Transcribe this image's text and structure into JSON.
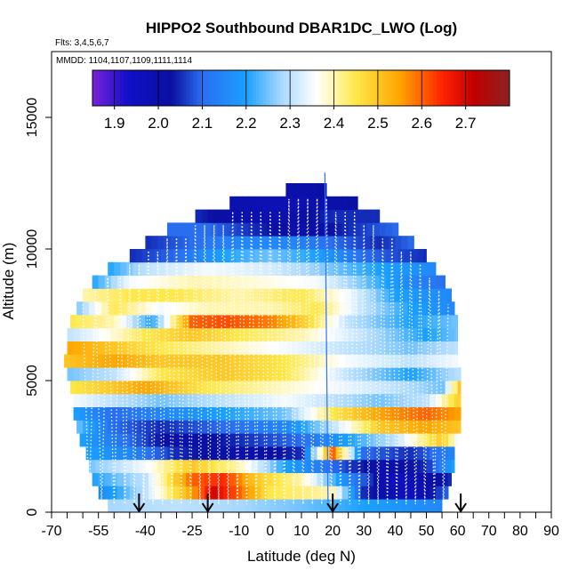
{
  "chart_data": {
    "type": "heatmap",
    "title": "HIPPO2 Southbound DBAR1DC_LWO (Log)",
    "flights_label": "Flts: 3,4,5,6,7",
    "dates_label": "MMDD: 1104,1107,1109,1111,1114",
    "xlabel": "Latitude (deg N)",
    "ylabel": "Altitude (m)",
    "xlim": [
      -70,
      90
    ],
    "ylim": [
      0,
      17500
    ],
    "x_ticks": [
      -70,
      -55,
      -40,
      -25,
      -10,
      0,
      10,
      20,
      30,
      40,
      50,
      60,
      70,
      80,
      90
    ],
    "x_minor_ticks": [
      -65,
      -60,
      -50,
      -45,
      -35,
      -30,
      -20,
      -15,
      -5,
      5,
      15,
      25,
      35,
      45,
      55,
      65,
      75,
      85
    ],
    "y_ticks": [
      0,
      5000,
      10000,
      15000
    ],
    "colorbar": {
      "min": 1.85,
      "max": 2.8,
      "tick_values": [
        1.9,
        2.0,
        2.1,
        2.2,
        2.3,
        2.4,
        2.5,
        2.6,
        2.7
      ],
      "tick_labels": [
        "1.9",
        "2.0",
        "2.1",
        "2.2",
        "2.3",
        "2.4",
        "2.5",
        "2.6",
        "2.7"
      ],
      "segment_edges": [
        1.9,
        2.0,
        2.1,
        2.2,
        2.3,
        2.4,
        2.5,
        2.6,
        2.7
      ],
      "stops": [
        {
          "v": 1.85,
          "color": "#7a22d8"
        },
        {
          "v": 1.93,
          "color": "#1010c8"
        },
        {
          "v": 2.03,
          "color": "#0a10a0"
        },
        {
          "v": 2.1,
          "color": "#2a6ef0"
        },
        {
          "v": 2.2,
          "color": "#1aa0ff"
        },
        {
          "v": 2.28,
          "color": "#a8d8ff"
        },
        {
          "v": 2.36,
          "color": "#ffffff"
        },
        {
          "v": 2.45,
          "color": "#ffe84a"
        },
        {
          "v": 2.55,
          "color": "#ffa500"
        },
        {
          "v": 2.65,
          "color": "#ff2000"
        },
        {
          "v": 2.72,
          "color": "#c00000"
        },
        {
          "v": 2.8,
          "color": "#8b2222"
        }
      ]
    },
    "altitude_bins_m": [
      0,
      500,
      1000,
      1500,
      2000,
      2500,
      3000,
      3500,
      4000,
      4500,
      5000,
      5500,
      6000,
      6500,
      7000,
      7500,
      8000,
      8500,
      9000,
      9500,
      10000,
      10500,
      11000,
      11500,
      12000
    ],
    "row_extent_lat": [
      [
        -52,
        55
      ],
      [
        -55,
        57
      ],
      [
        -57,
        58
      ],
      [
        -58,
        59
      ],
      [
        -59,
        59
      ],
      [
        -61,
        60
      ],
      [
        -62,
        61
      ],
      [
        -63,
        61
      ],
      [
        -63,
        61
      ],
      [
        -64,
        61
      ],
      [
        -65,
        61
      ],
      [
        -66,
        60
      ],
      [
        -65,
        60
      ],
      [
        -65,
        60
      ],
      [
        -64,
        60
      ],
      [
        -62,
        59
      ],
      [
        -60,
        58
      ],
      [
        -57,
        56
      ],
      [
        -52,
        53
      ],
      [
        -45,
        50
      ],
      [
        -40,
        46
      ],
      [
        -33,
        41
      ],
      [
        -24,
        35
      ],
      [
        -13,
        28
      ],
      [
        5,
        18
      ]
    ],
    "field_bands": [
      {
        "alt": [
          0,
          500
        ],
        "knots": [
          [
            -52,
            2.28
          ],
          [
            -30,
            2.3
          ],
          [
            -10,
            2.28
          ],
          [
            10,
            2.25
          ],
          [
            30,
            2.2
          ],
          [
            55,
            2.15
          ]
        ]
      },
      {
        "alt": [
          500,
          1000
        ],
        "knots": [
          [
            -55,
            2.15
          ],
          [
            -40,
            2.3
          ],
          [
            -25,
            2.55
          ],
          [
            -18,
            2.7
          ],
          [
            -10,
            2.6
          ],
          [
            0,
            2.45
          ],
          [
            20,
            2.4
          ],
          [
            30,
            2.05
          ],
          [
            45,
            1.95
          ],
          [
            57,
            2.1
          ]
        ]
      },
      {
        "alt": [
          1000,
          1500
        ],
        "knots": [
          [
            -57,
            2.2
          ],
          [
            -40,
            2.3
          ],
          [
            -25,
            2.6
          ],
          [
            -15,
            2.65
          ],
          [
            -5,
            2.5
          ],
          [
            10,
            2.4
          ],
          [
            25,
            2.15
          ],
          [
            40,
            1.95
          ],
          [
            58,
            2.05
          ]
        ]
      },
      {
        "alt": [
          1500,
          2000
        ],
        "knots": [
          [
            -58,
            2.25
          ],
          [
            -40,
            2.35
          ],
          [
            -25,
            2.5
          ],
          [
            -10,
            2.4
          ],
          [
            5,
            2.2
          ],
          [
            20,
            2.1
          ],
          [
            35,
            2.0
          ],
          [
            50,
            2.05
          ],
          [
            59,
            2.2
          ]
        ]
      },
      {
        "alt": [
          2000,
          2500
        ],
        "knots": [
          [
            -59,
            2.2
          ],
          [
            -45,
            2.15
          ],
          [
            -30,
            2.05
          ],
          [
            -10,
            2.0
          ],
          [
            10,
            2.05
          ],
          [
            20,
            2.6
          ],
          [
            30,
            2.1
          ],
          [
            45,
            2.05
          ],
          [
            59,
            2.15
          ]
        ]
      },
      {
        "alt": [
          2500,
          3000
        ],
        "knots": [
          [
            -61,
            2.2
          ],
          [
            -45,
            2.1
          ],
          [
            -30,
            2.0
          ],
          [
            -10,
            2.05
          ],
          [
            10,
            2.1
          ],
          [
            25,
            2.2
          ],
          [
            40,
            2.3
          ],
          [
            55,
            2.5
          ],
          [
            60,
            2.35
          ]
        ]
      },
      {
        "alt": [
          3000,
          3500
        ],
        "knots": [
          [
            -62,
            2.25
          ],
          [
            -50,
            2.1
          ],
          [
            -35,
            2.05
          ],
          [
            -15,
            2.1
          ],
          [
            5,
            2.15
          ],
          [
            20,
            2.3
          ],
          [
            35,
            2.5
          ],
          [
            50,
            2.55
          ],
          [
            61,
            2.5
          ]
        ]
      },
      {
        "alt": [
          3500,
          4000
        ],
        "knots": [
          [
            -63,
            2.2
          ],
          [
            -50,
            2.1
          ],
          [
            -35,
            2.15
          ],
          [
            -15,
            2.2
          ],
          [
            5,
            2.25
          ],
          [
            20,
            2.45
          ],
          [
            35,
            2.55
          ],
          [
            50,
            2.6
          ],
          [
            61,
            2.55
          ]
        ]
      },
      {
        "alt": [
          4000,
          4500
        ],
        "knots": [
          [
            -63,
            2.35
          ],
          [
            -50,
            2.3
          ],
          [
            -35,
            2.25
          ],
          [
            -15,
            2.3
          ],
          [
            5,
            2.35
          ],
          [
            20,
            2.3
          ],
          [
            35,
            2.25
          ],
          [
            50,
            2.3
          ],
          [
            61,
            2.5
          ]
        ]
      },
      {
        "alt": [
          4500,
          5000
        ],
        "knots": [
          [
            -64,
            2.45
          ],
          [
            -50,
            2.5
          ],
          [
            -40,
            2.55
          ],
          [
            -20,
            2.45
          ],
          [
            0,
            2.4
          ],
          [
            20,
            2.35
          ],
          [
            40,
            2.3
          ],
          [
            55,
            2.25
          ],
          [
            61,
            2.5
          ]
        ]
      },
      {
        "alt": [
          5000,
          5500
        ],
        "knots": [
          [
            -65,
            2.25
          ],
          [
            -50,
            2.3
          ],
          [
            -35,
            2.45
          ],
          [
            -15,
            2.5
          ],
          [
            5,
            2.45
          ],
          [
            25,
            2.3
          ],
          [
            45,
            2.2
          ],
          [
            61,
            2.3
          ]
        ]
      },
      {
        "alt": [
          5500,
          6000
        ],
        "knots": [
          [
            -66,
            2.5
          ],
          [
            -50,
            2.55
          ],
          [
            -35,
            2.5
          ],
          [
            -15,
            2.5
          ],
          [
            5,
            2.45
          ],
          [
            25,
            2.35
          ],
          [
            45,
            2.3
          ],
          [
            60,
            2.35
          ]
        ]
      },
      {
        "alt": [
          6000,
          6500
        ],
        "knots": [
          [
            -65,
            2.55
          ],
          [
            -50,
            2.5
          ],
          [
            -35,
            2.45
          ],
          [
            -15,
            2.4
          ],
          [
            5,
            2.35
          ],
          [
            25,
            2.3
          ],
          [
            45,
            2.25
          ],
          [
            60,
            2.3
          ]
        ]
      },
      {
        "alt": [
          6500,
          7000
        ],
        "knots": [
          [
            -65,
            2.3
          ],
          [
            -55,
            2.35
          ],
          [
            -40,
            2.45
          ],
          [
            -25,
            2.5
          ],
          [
            -10,
            2.45
          ],
          [
            10,
            2.4
          ],
          [
            30,
            2.3
          ],
          [
            50,
            2.2
          ],
          [
            60,
            2.25
          ]
        ]
      },
      {
        "alt": [
          7000,
          7500
        ],
        "knots": [
          [
            -64,
            2.45
          ],
          [
            -50,
            2.4
          ],
          [
            -38,
            2.2
          ],
          [
            -25,
            2.6
          ],
          [
            -15,
            2.62
          ],
          [
            0,
            2.58
          ],
          [
            10,
            2.5
          ],
          [
            25,
            2.3
          ],
          [
            45,
            2.2
          ],
          [
            60,
            2.25
          ]
        ]
      },
      {
        "alt": [
          7500,
          8000
        ],
        "knots": [
          [
            -62,
            2.25
          ],
          [
            -50,
            2.45
          ],
          [
            -35,
            2.35
          ],
          [
            -20,
            2.4
          ],
          [
            0,
            2.4
          ],
          [
            15,
            2.45
          ],
          [
            30,
            2.3
          ],
          [
            45,
            2.2
          ],
          [
            59,
            2.15
          ]
        ]
      },
      {
        "alt": [
          8000,
          8500
        ],
        "knots": [
          [
            -60,
            2.4
          ],
          [
            -45,
            2.45
          ],
          [
            -30,
            2.45
          ],
          [
            -10,
            2.4
          ],
          [
            10,
            2.45
          ],
          [
            25,
            2.35
          ],
          [
            40,
            2.2
          ],
          [
            58,
            2.15
          ]
        ]
      },
      {
        "alt": [
          8500,
          9000
        ],
        "knots": [
          [
            -57,
            2.2
          ],
          [
            -45,
            2.35
          ],
          [
            -25,
            2.4
          ],
          [
            -5,
            2.38
          ],
          [
            15,
            2.35
          ],
          [
            30,
            2.25
          ],
          [
            45,
            2.15
          ],
          [
            56,
            2.1
          ]
        ]
      },
      {
        "alt": [
          9000,
          9500
        ],
        "knots": [
          [
            -52,
            2.2
          ],
          [
            -40,
            2.3
          ],
          [
            -20,
            2.35
          ],
          [
            0,
            2.32
          ],
          [
            20,
            2.25
          ],
          [
            35,
            2.2
          ],
          [
            53,
            2.15
          ]
        ]
      },
      {
        "alt": [
          9500,
          10000
        ],
        "knots": [
          [
            -45,
            2.05
          ],
          [
            -30,
            2.1
          ],
          [
            -15,
            2.2
          ],
          [
            0,
            2.25
          ],
          [
            15,
            2.2
          ],
          [
            30,
            2.1
          ],
          [
            50,
            2.05
          ]
        ]
      },
      {
        "alt": [
          10000,
          10500
        ],
        "knots": [
          [
            -40,
            2.05
          ],
          [
            -25,
            2.1
          ],
          [
            -10,
            2.15
          ],
          [
            5,
            2.15
          ],
          [
            20,
            2.1
          ],
          [
            35,
            2.05
          ],
          [
            46,
            2.1
          ]
        ]
      },
      {
        "alt": [
          10500,
          11000
        ],
        "knots": [
          [
            -33,
            2.1
          ],
          [
            -20,
            2.1
          ],
          [
            -5,
            2.05
          ],
          [
            10,
            2.0
          ],
          [
            25,
            2.05
          ],
          [
            41,
            2.1
          ]
        ]
      },
      {
        "alt": [
          11000,
          11500
        ],
        "knots": [
          [
            -24,
            2.05
          ],
          [
            -10,
            2.0
          ],
          [
            5,
            2.0
          ],
          [
            20,
            2.05
          ],
          [
            35,
            2.05
          ]
        ]
      },
      {
        "alt": [
          11500,
          12000
        ],
        "knots": [
          [
            -13,
            2.0
          ],
          [
            0,
            1.98
          ],
          [
            15,
            2.0
          ],
          [
            28,
            2.02
          ]
        ]
      },
      {
        "alt": [
          12000,
          12500
        ],
        "knots": [
          [
            5,
            2.0
          ],
          [
            18,
            2.02
          ]
        ]
      }
    ],
    "flight_track_latitudes": [
      -60,
      -56,
      -52,
      -48,
      -45,
      -42,
      -39,
      -36,
      -33,
      -30,
      -27,
      -24,
      -21,
      -18,
      -15,
      -12,
      -9,
      -6,
      -3,
      0,
      3,
      6,
      9,
      12,
      15,
      18,
      21,
      24,
      27,
      30,
      33,
      36,
      39,
      42,
      45,
      48,
      51,
      54,
      57
    ],
    "marker_arrows_lat": [
      -42,
      -20,
      20,
      61
    ]
  }
}
